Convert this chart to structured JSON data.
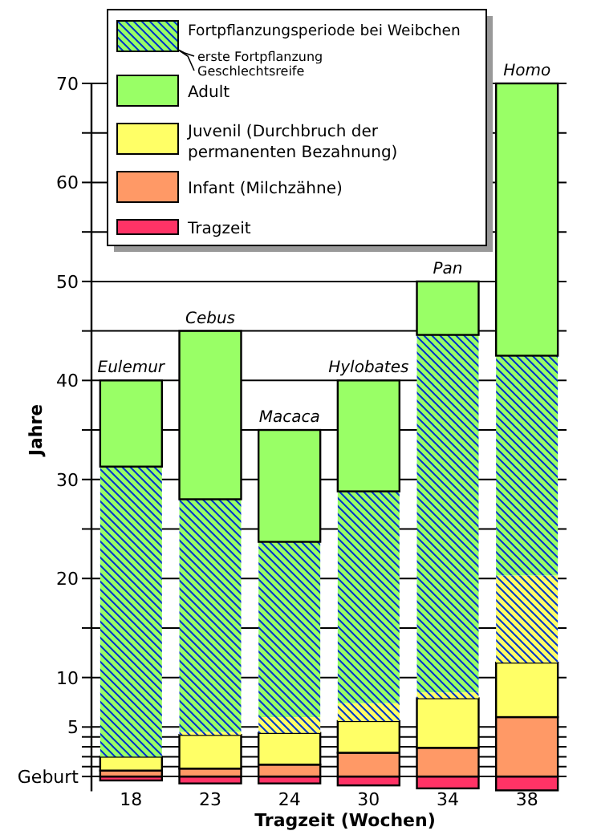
{
  "chart_data": {
    "type": "bar",
    "stacked": true,
    "xlabel": "Tragzeit (Wochen)",
    "ylabel": "Jahre",
    "categories": [
      "18",
      "23",
      "24",
      "30",
      "34",
      "38"
    ],
    "series": [
      {
        "name": "Tragzeit",
        "color": "#ff3366",
        "values": [
          -0.4,
          -0.7,
          -0.7,
          -0.9,
          -1.2,
          -1.4
        ]
      },
      {
        "name": "Infant (Milchzähne)",
        "color": "#ff9966",
        "values": [
          0.6,
          0.8,
          1.2,
          2.4,
          2.9,
          6
        ]
      },
      {
        "name": "Juvenil (Durchbruch der permanenten Bezahnung)",
        "color": "#ffff66",
        "values": [
          1.4,
          3.4,
          3.2,
          3.2,
          5,
          5.5
        ]
      },
      {
        "color": "#0033cc",
        "values": [
          0,
          0.3,
          1.6,
          1.8,
          0.6,
          8.8
        ]
      },
      {
        "name": "Fortpflanzungsperiode bei Weibchen",
        "color": "#0033cc",
        "values": [
          29.3,
          23.5,
          17.7,
          21.4,
          36.1,
          22.2
        ]
      },
      {
        "name": "Adult",
        "color": "#99ff66",
        "values": [
          8.7,
          17,
          11.3,
          11.2,
          5.4,
          27.5
        ]
      }
    ],
    "ylim": [
      -1.5,
      70
    ],
    "yticks": [
      {
        "value": 0,
        "label": "Geburt"
      },
      {
        "value": 1,
        "label": null
      },
      {
        "value": 2,
        "label": null
      },
      {
        "value": 3,
        "label": null
      },
      {
        "value": 4,
        "label": null
      },
      5,
      10,
      {
        "value": 15,
        "label": null
      },
      20,
      {
        "value": 25,
        "label": null
      },
      30,
      {
        "value": 35,
        "label": null
      },
      40,
      {
        "value": 45,
        "label": null
      },
      50,
      {
        "value": 55,
        "label": null
      },
      60,
      {
        "value": 65,
        "label": null
      },
      70
    ],
    "grid": "y",
    "legend": "top",
    "annotations": [
      "erste Fortpflanzung",
      "Geschlechtsreife",
      {
        "text": "Eulemur",
        "x": "18",
        "y": 40
      },
      {
        "text": "Cebus",
        "x": "23",
        "y": 45
      },
      {
        "text": "Macaca",
        "x": "24",
        "y": 35
      },
      {
        "text": "Hylobates",
        "x": "30",
        "y": 40
      },
      {
        "text": "Pan",
        "x": "34",
        "y": 50
      },
      {
        "text": "Homo",
        "x": "38",
        "y": 70
      }
    ]
  }
}
